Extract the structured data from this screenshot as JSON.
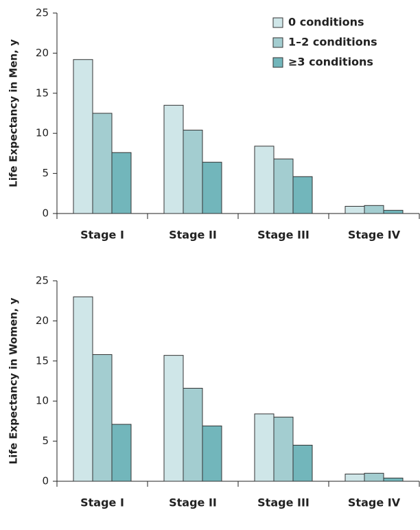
{
  "chart_data": [
    {
      "type": "bar",
      "ylabel": "Life Expectancy in Men, y",
      "categories": [
        "Stage I",
        "Stage II",
        "Stage III",
        "Stage IV"
      ],
      "series": [
        {
          "name": "0 conditions",
          "color": "#cfe6e8",
          "values": [
            19.2,
            13.5,
            8.4,
            0.9
          ]
        },
        {
          "name": "1–2 conditions",
          "color": "#a3cdd0",
          "values": [
            12.5,
            10.4,
            6.8,
            1.0
          ]
        },
        {
          "name": "≥3 conditions",
          "color": "#72b6bb",
          "values": [
            7.6,
            6.4,
            4.6,
            0.4
          ]
        }
      ],
      "ylim": [
        0,
        25
      ],
      "yticks": [
        0,
        5,
        10,
        15,
        20,
        25
      ],
      "legend": "upper right"
    },
    {
      "type": "bar",
      "ylabel": "Life Expectancy in Women, y",
      "categories": [
        "Stage I",
        "Stage II",
        "Stage III",
        "Stage IV"
      ],
      "series": [
        {
          "color": "#cfe6e8",
          "values": [
            23.0,
            15.7,
            8.4,
            0.9
          ]
        },
        {
          "color": "#a3cdd0",
          "values": [
            15.8,
            11.6,
            8.0,
            1.0
          ]
        },
        {
          "color": "#72b6bb",
          "values": [
            7.1,
            6.9,
            4.5,
            0.4
          ]
        }
      ],
      "ylim": [
        0,
        25
      ],
      "yticks": [
        0,
        5,
        10,
        15,
        20,
        25
      ]
    }
  ]
}
